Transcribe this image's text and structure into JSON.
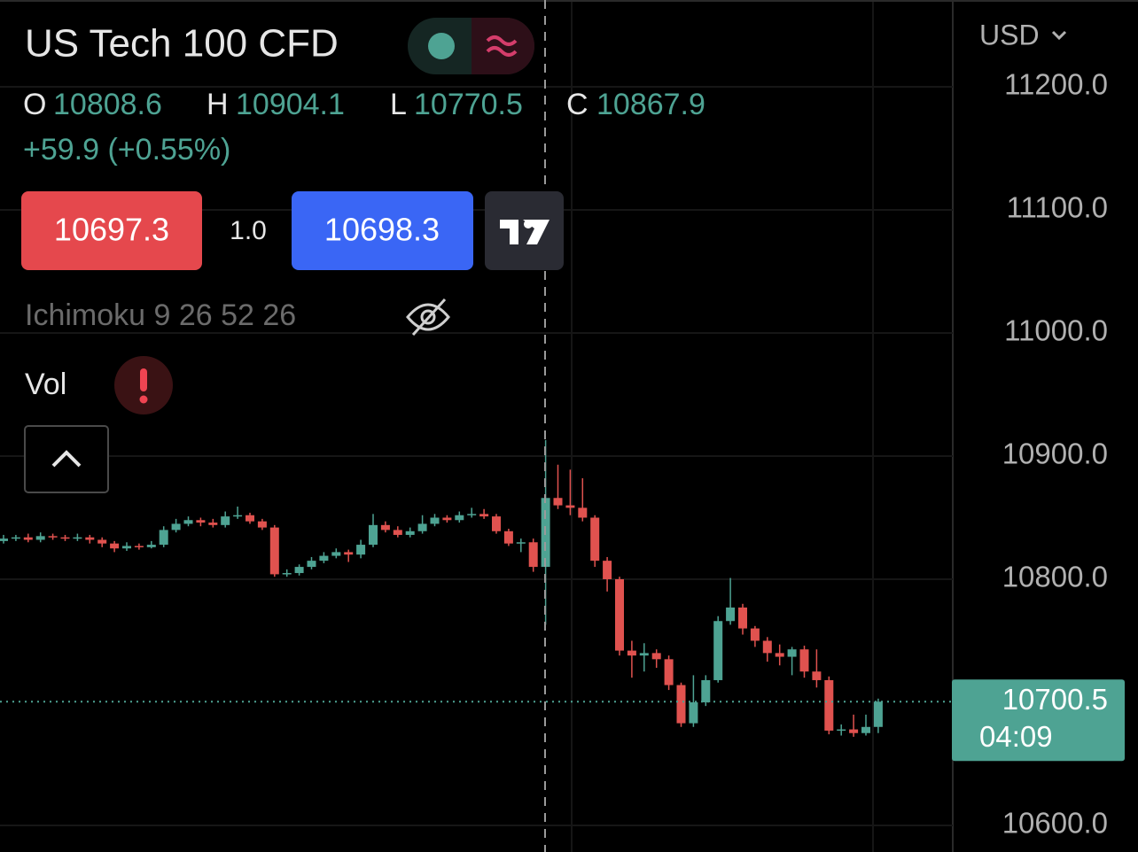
{
  "header": {
    "title": "US Tech 100 CFD",
    "ohlc": [
      {
        "label": "O",
        "value": "10808.6"
      },
      {
        "label": "H",
        "value": "10904.1"
      },
      {
        "label": "L",
        "value": "10770.5"
      },
      {
        "label": "C",
        "value": "10867.9"
      }
    ],
    "change": "+59.9 (+0.55%)"
  },
  "trade": {
    "sell": "10697.3",
    "spread": "1.0",
    "buy": "10698.3"
  },
  "indicators": {
    "ichimoku": "Ichimoku 9 26 52 26",
    "volume": "Vol"
  },
  "chart_data": {
    "type": "candlestick",
    "currency": "USD",
    "up_color": "#4ea393",
    "down_color": "#e0524f",
    "ylim": [
      10578.4,
      11270.5
    ],
    "yticks": [
      {
        "value": 10600,
        "label": "10600.0"
      },
      {
        "value": 10800,
        "label": "10800.0"
      },
      {
        "value": 10900,
        "label": "10900.0"
      },
      {
        "value": 11000,
        "label": "11000.0"
      },
      {
        "value": 11100,
        "label": "11100.0"
      },
      {
        "value": 11200,
        "label": "11200.0"
      }
    ],
    "last_price": 10700.5,
    "countdown": "04:09",
    "open": [
      10831,
      10833,
      10834,
      10832,
      10835,
      10834,
      10833,
      10834,
      10832,
      10829,
      10825,
      10827,
      10826,
      10828,
      10840,
      10845,
      10848,
      10846,
      10844,
      10851,
      10852,
      10847,
      10842,
      10804,
      10805,
      10810,
      10815,
      10819,
      10822,
      10820,
      10828,
      10844,
      10840,
      10836,
      10839,
      10845,
      10850,
      10848,
      10852,
      10853,
      10851,
      10839,
      10829,
      10830,
      10810,
      10866,
      10860,
      10858,
      10850,
      10815,
      10800,
      10742,
      10738,
      10740,
      10735,
      10714,
      10683,
      10700,
      10718,
      10766,
      10777,
      10760,
      10750,
      10740,
      10737,
      10743,
      10725,
      10718,
      10677,
      10678,
      10675,
      10680
    ],
    "high": [
      10836,
      10836,
      10837,
      10838,
      10837,
      10836,
      10837,
      10836,
      10834,
      10831,
      10830,
      10829,
      10831,
      10843,
      10849,
      10851,
      10850,
      10849,
      10855,
      10859,
      10854,
      10849,
      10844,
      10808,
      10812,
      10818,
      10822,
      10825,
      10824,
      10832,
      10853,
      10847,
      10843,
      10842,
      10852,
      10853,
      10852,
      10855,
      10858,
      10857,
      10853,
      10841,
      10833,
      10833,
      10913,
      10893,
      10889,
      10882,
      10852,
      10818,
      10802,
      10750,
      10748,
      10743,
      10738,
      10716,
      10722,
      10722,
      10770,
      10801,
      10780,
      10762,
      10753,
      10747,
      10745,
      10746,
      10743,
      10721,
      10682,
      10690,
      10690,
      10703
    ],
    "low": [
      10829,
      10831,
      10830,
      10830,
      10832,
      10831,
      10831,
      10829,
      10826,
      10822,
      10823,
      10824,
      10825,
      10826,
      10838,
      10843,
      10843,
      10842,
      10842,
      10849,
      10845,
      10840,
      10802,
      10802,
      10803,
      10808,
      10813,
      10817,
      10814,
      10817,
      10826,
      10838,
      10834,
      10834,
      10837,
      10843,
      10846,
      10846,
      10850,
      10849,
      10837,
      10827,
      10822,
      10806,
      10763,
      10857,
      10852,
      10847,
      10810,
      10790,
      10738,
      10720,
      10725,
      10728,
      10710,
      10680,
      10680,
      10697,
      10716,
      10763,
      10755,
      10745,
      10733,
      10730,
      10722,
      10720,
      10712,
      10674,
      10673,
      10672,
      10673,
      10675
    ],
    "close": [
      10833,
      10834,
      10832,
      10835,
      10834,
      10833,
      10834,
      10832,
      10829,
      10825,
      10827,
      10826,
      10828,
      10840,
      10845,
      10848,
      10846,
      10844,
      10851,
      10852,
      10847,
      10842,
      10804,
      10805,
      10810,
      10815,
      10819,
      10822,
      10820,
      10828,
      10844,
      10840,
      10836,
      10839,
      10845,
      10850,
      10848,
      10852,
      10853,
      10851,
      10839,
      10829,
      10830,
      10810,
      10866,
      10860,
      10858,
      10850,
      10815,
      10800,
      10742,
      10738,
      10740,
      10735,
      10714,
      10683,
      10700,
      10718,
      10766,
      10777,
      10760,
      10750,
      10740,
      10737,
      10743,
      10725,
      10718,
      10677,
      10678,
      10675,
      10680,
      10700.5
    ]
  }
}
